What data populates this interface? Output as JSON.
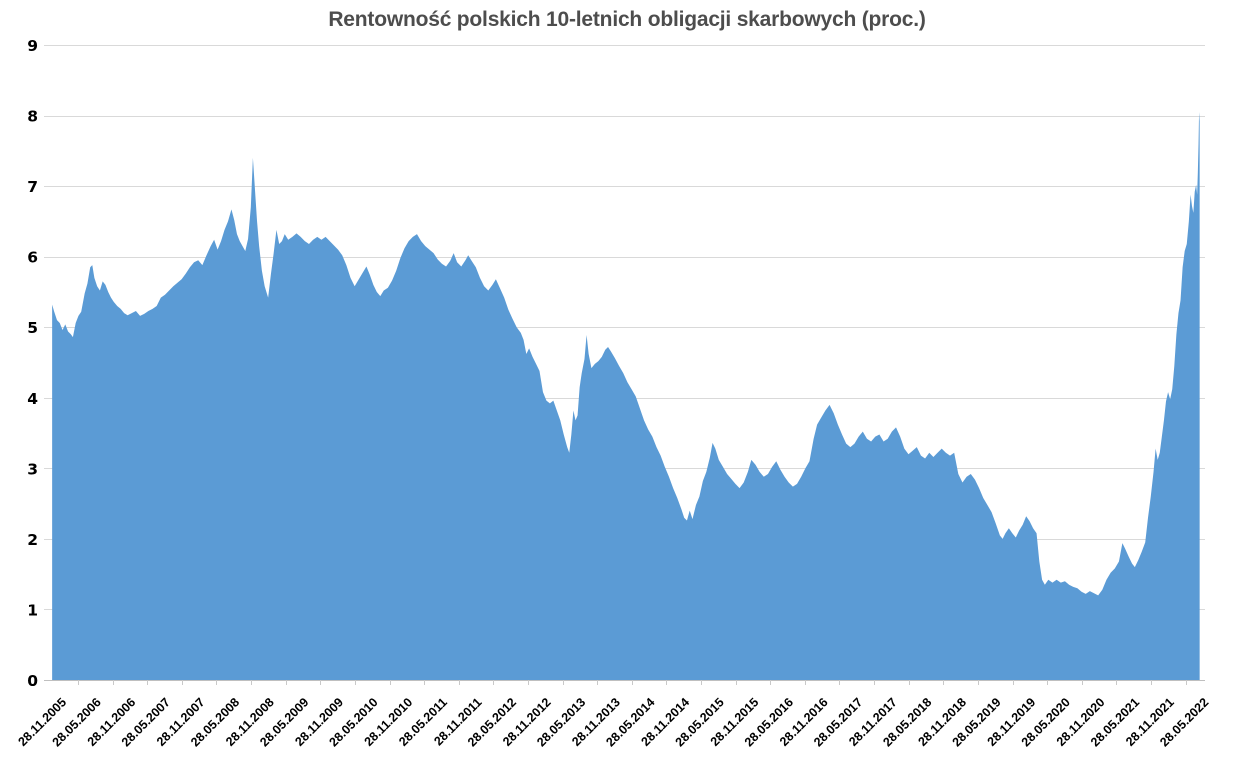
{
  "colors": {
    "area": "#5B9BD5",
    "gridline": "#D9D9D9",
    "axis_line": "#BFBFBF",
    "tick_mark": "#C9C9C9",
    "title_text": "#4D4D4D",
    "tick_text": "#000000",
    "background": "#FFFFFF"
  },
  "chart_data": {
    "type": "area",
    "title": "Rentowność polskich 10-letnich obligacji skarbowych (proc.)",
    "xlabel": "",
    "ylabel": "",
    "ylim": [
      0,
      9
    ],
    "grid": true,
    "legend": false,
    "x_unit": "decimal_year",
    "y_tick_labels": [
      "0",
      "1",
      "2",
      "3",
      "4",
      "5",
      "6",
      "7",
      "8",
      "9"
    ],
    "x_tick_labels": [
      "28.11.2005",
      "28.05.2006",
      "28.11.2006",
      "28.05.2007",
      "28.11.2007",
      "28.05.2008",
      "28.11.2008",
      "28.05.2009",
      "28.11.2009",
      "28.05.2010",
      "28.11.2010",
      "28.05.2011",
      "28.11.2011",
      "28.05.2012",
      "28.11.2012",
      "28.05.2013",
      "28.11.2013",
      "28.05.2014",
      "28.11.2014",
      "28.05.2015",
      "28.11.2015",
      "28.05.2016",
      "28.11.2016",
      "28.05.2017",
      "28.11.2017",
      "28.05.2018",
      "28.11.2018",
      "28.05.2019",
      "28.11.2019",
      "28.05.2020",
      "28.11.2020",
      "28.05.2021",
      "28.11.2021",
      "28.05.2022"
    ],
    "points": [
      [
        2005.91,
        5.32
      ],
      [
        2005.94,
        5.22
      ],
      [
        2005.98,
        5.1
      ],
      [
        2006.02,
        5.06
      ],
      [
        2006.06,
        4.96
      ],
      [
        2006.1,
        5.04
      ],
      [
        2006.14,
        4.94
      ],
      [
        2006.18,
        4.9
      ],
      [
        2006.21,
        4.86
      ],
      [
        2006.25,
        5.06
      ],
      [
        2006.29,
        5.16
      ],
      [
        2006.33,
        5.22
      ],
      [
        2006.38,
        5.48
      ],
      [
        2006.42,
        5.62
      ],
      [
        2006.46,
        5.85
      ],
      [
        2006.49,
        5.88
      ],
      [
        2006.52,
        5.7
      ],
      [
        2006.56,
        5.58
      ],
      [
        2006.6,
        5.52
      ],
      [
        2006.64,
        5.65
      ],
      [
        2006.68,
        5.6
      ],
      [
        2006.72,
        5.5
      ],
      [
        2006.76,
        5.42
      ],
      [
        2006.8,
        5.36
      ],
      [
        2006.85,
        5.3
      ],
      [
        2006.9,
        5.26
      ],
      [
        2006.95,
        5.2
      ],
      [
        2007.0,
        5.17
      ],
      [
        2007.06,
        5.2
      ],
      [
        2007.12,
        5.23
      ],
      [
        2007.18,
        5.16
      ],
      [
        2007.24,
        5.19
      ],
      [
        2007.3,
        5.23
      ],
      [
        2007.36,
        5.26
      ],
      [
        2007.42,
        5.3
      ],
      [
        2007.48,
        5.42
      ],
      [
        2007.54,
        5.46
      ],
      [
        2007.6,
        5.52
      ],
      [
        2007.66,
        5.58
      ],
      [
        2007.72,
        5.63
      ],
      [
        2007.78,
        5.68
      ],
      [
        2007.84,
        5.76
      ],
      [
        2007.9,
        5.85
      ],
      [
        2007.96,
        5.92
      ],
      [
        2008.02,
        5.95
      ],
      [
        2008.08,
        5.88
      ],
      [
        2008.14,
        6.02
      ],
      [
        2008.2,
        6.15
      ],
      [
        2008.25,
        6.24
      ],
      [
        2008.3,
        6.1
      ],
      [
        2008.35,
        6.22
      ],
      [
        2008.4,
        6.38
      ],
      [
        2008.45,
        6.5
      ],
      [
        2008.5,
        6.67
      ],
      [
        2008.54,
        6.52
      ],
      [
        2008.58,
        6.32
      ],
      [
        2008.62,
        6.22
      ],
      [
        2008.66,
        6.15
      ],
      [
        2008.7,
        6.08
      ],
      [
        2008.74,
        6.25
      ],
      [
        2008.78,
        6.7
      ],
      [
        2008.81,
        7.4
      ],
      [
        2008.84,
        6.95
      ],
      [
        2008.87,
        6.5
      ],
      [
        2008.9,
        6.15
      ],
      [
        2008.94,
        5.8
      ],
      [
        2008.98,
        5.58
      ],
      [
        2009.03,
        5.42
      ],
      [
        2009.07,
        5.75
      ],
      [
        2009.11,
        6.05
      ],
      [
        2009.15,
        6.38
      ],
      [
        2009.19,
        6.18
      ],
      [
        2009.23,
        6.22
      ],
      [
        2009.27,
        6.32
      ],
      [
        2009.32,
        6.24
      ],
      [
        2009.38,
        6.28
      ],
      [
        2009.44,
        6.33
      ],
      [
        2009.5,
        6.28
      ],
      [
        2009.56,
        6.22
      ],
      [
        2009.62,
        6.18
      ],
      [
        2009.68,
        6.24
      ],
      [
        2009.74,
        6.28
      ],
      [
        2009.8,
        6.24
      ],
      [
        2009.86,
        6.28
      ],
      [
        2009.92,
        6.22
      ],
      [
        2009.98,
        6.16
      ],
      [
        2010.04,
        6.1
      ],
      [
        2010.1,
        6.02
      ],
      [
        2010.16,
        5.88
      ],
      [
        2010.22,
        5.7
      ],
      [
        2010.28,
        5.58
      ],
      [
        2010.34,
        5.68
      ],
      [
        2010.4,
        5.78
      ],
      [
        2010.45,
        5.86
      ],
      [
        2010.5,
        5.74
      ],
      [
        2010.55,
        5.6
      ],
      [
        2010.6,
        5.5
      ],
      [
        2010.65,
        5.44
      ],
      [
        2010.7,
        5.52
      ],
      [
        2010.76,
        5.56
      ],
      [
        2010.82,
        5.66
      ],
      [
        2010.88,
        5.8
      ],
      [
        2010.94,
        5.98
      ],
      [
        2011.0,
        6.12
      ],
      [
        2011.06,
        6.22
      ],
      [
        2011.12,
        6.28
      ],
      [
        2011.18,
        6.32
      ],
      [
        2011.24,
        6.22
      ],
      [
        2011.3,
        6.15
      ],
      [
        2011.36,
        6.1
      ],
      [
        2011.42,
        6.05
      ],
      [
        2011.48,
        5.96
      ],
      [
        2011.54,
        5.9
      ],
      [
        2011.6,
        5.86
      ],
      [
        2011.66,
        5.94
      ],
      [
        2011.71,
        6.05
      ],
      [
        2011.76,
        5.92
      ],
      [
        2011.82,
        5.86
      ],
      [
        2011.88,
        5.95
      ],
      [
        2011.92,
        6.02
      ],
      [
        2011.97,
        5.94
      ],
      [
        2012.03,
        5.85
      ],
      [
        2012.09,
        5.7
      ],
      [
        2012.15,
        5.58
      ],
      [
        2012.21,
        5.52
      ],
      [
        2012.27,
        5.6
      ],
      [
        2012.32,
        5.68
      ],
      [
        2012.38,
        5.55
      ],
      [
        2012.44,
        5.42
      ],
      [
        2012.5,
        5.25
      ],
      [
        2012.56,
        5.12
      ],
      [
        2012.62,
        5.0
      ],
      [
        2012.68,
        4.92
      ],
      [
        2012.72,
        4.82
      ],
      [
        2012.76,
        4.62
      ],
      [
        2012.8,
        4.7
      ],
      [
        2012.85,
        4.58
      ],
      [
        2012.9,
        4.48
      ],
      [
        2012.95,
        4.38
      ],
      [
        2013.0,
        4.08
      ],
      [
        2013.05,
        3.96
      ],
      [
        2013.1,
        3.92
      ],
      [
        2013.15,
        3.96
      ],
      [
        2013.2,
        3.82
      ],
      [
        2013.25,
        3.68
      ],
      [
        2013.3,
        3.48
      ],
      [
        2013.35,
        3.3
      ],
      [
        2013.38,
        3.22
      ],
      [
        2013.41,
        3.48
      ],
      [
        2013.44,
        3.82
      ],
      [
        2013.47,
        3.68
      ],
      [
        2013.5,
        3.75
      ],
      [
        2013.53,
        4.15
      ],
      [
        2013.56,
        4.35
      ],
      [
        2013.6,
        4.55
      ],
      [
        2013.63,
        4.89
      ],
      [
        2013.66,
        4.62
      ],
      [
        2013.7,
        4.42
      ],
      [
        2013.75,
        4.48
      ],
      [
        2013.8,
        4.52
      ],
      [
        2013.85,
        4.58
      ],
      [
        2013.9,
        4.68
      ],
      [
        2013.94,
        4.72
      ],
      [
        2013.98,
        4.66
      ],
      [
        2014.04,
        4.56
      ],
      [
        2014.1,
        4.45
      ],
      [
        2014.16,
        4.35
      ],
      [
        2014.22,
        4.22
      ],
      [
        2014.28,
        4.12
      ],
      [
        2014.34,
        4.02
      ],
      [
        2014.4,
        3.85
      ],
      [
        2014.46,
        3.68
      ],
      [
        2014.52,
        3.55
      ],
      [
        2014.58,
        3.45
      ],
      [
        2014.64,
        3.3
      ],
      [
        2014.7,
        3.18
      ],
      [
        2014.76,
        3.02
      ],
      [
        2014.82,
        2.88
      ],
      [
        2014.88,
        2.72
      ],
      [
        2014.94,
        2.58
      ],
      [
        2015.0,
        2.42
      ],
      [
        2015.04,
        2.3
      ],
      [
        2015.08,
        2.26
      ],
      [
        2015.12,
        2.4
      ],
      [
        2015.16,
        2.28
      ],
      [
        2015.21,
        2.48
      ],
      [
        2015.26,
        2.6
      ],
      [
        2015.31,
        2.82
      ],
      [
        2015.36,
        2.95
      ],
      [
        2015.41,
        3.15
      ],
      [
        2015.45,
        3.36
      ],
      [
        2015.49,
        3.28
      ],
      [
        2015.54,
        3.12
      ],
      [
        2015.6,
        3.02
      ],
      [
        2015.66,
        2.92
      ],
      [
        2015.72,
        2.85
      ],
      [
        2015.78,
        2.78
      ],
      [
        2015.84,
        2.72
      ],
      [
        2015.9,
        2.8
      ],
      [
        2015.96,
        2.95
      ],
      [
        2016.01,
        3.12
      ],
      [
        2016.07,
        3.05
      ],
      [
        2016.13,
        2.95
      ],
      [
        2016.19,
        2.88
      ],
      [
        2016.25,
        2.92
      ],
      [
        2016.31,
        3.02
      ],
      [
        2016.37,
        3.1
      ],
      [
        2016.43,
        2.98
      ],
      [
        2016.49,
        2.88
      ],
      [
        2016.55,
        2.8
      ],
      [
        2016.61,
        2.74
      ],
      [
        2016.67,
        2.78
      ],
      [
        2016.73,
        2.88
      ],
      [
        2016.79,
        3.0
      ],
      [
        2016.85,
        3.1
      ],
      [
        2016.91,
        3.42
      ],
      [
        2016.96,
        3.62
      ],
      [
        2017.02,
        3.72
      ],
      [
        2017.08,
        3.82
      ],
      [
        2017.14,
        3.9
      ],
      [
        2017.2,
        3.78
      ],
      [
        2017.26,
        3.62
      ],
      [
        2017.32,
        3.48
      ],
      [
        2017.38,
        3.35
      ],
      [
        2017.44,
        3.3
      ],
      [
        2017.5,
        3.35
      ],
      [
        2017.56,
        3.45
      ],
      [
        2017.62,
        3.52
      ],
      [
        2017.68,
        3.42
      ],
      [
        2017.74,
        3.38
      ],
      [
        2017.8,
        3.45
      ],
      [
        2017.86,
        3.48
      ],
      [
        2017.92,
        3.38
      ],
      [
        2017.98,
        3.42
      ],
      [
        2018.04,
        3.52
      ],
      [
        2018.1,
        3.58
      ],
      [
        2018.16,
        3.45
      ],
      [
        2018.22,
        3.28
      ],
      [
        2018.28,
        3.2
      ],
      [
        2018.34,
        3.25
      ],
      [
        2018.4,
        3.3
      ],
      [
        2018.46,
        3.18
      ],
      [
        2018.52,
        3.14
      ],
      [
        2018.58,
        3.22
      ],
      [
        2018.64,
        3.16
      ],
      [
        2018.7,
        3.22
      ],
      [
        2018.76,
        3.28
      ],
      [
        2018.82,
        3.22
      ],
      [
        2018.88,
        3.18
      ],
      [
        2018.94,
        3.22
      ],
      [
        2019.0,
        2.92
      ],
      [
        2019.06,
        2.8
      ],
      [
        2019.12,
        2.88
      ],
      [
        2019.18,
        2.92
      ],
      [
        2019.24,
        2.84
      ],
      [
        2019.3,
        2.72
      ],
      [
        2019.36,
        2.58
      ],
      [
        2019.42,
        2.48
      ],
      [
        2019.48,
        2.38
      ],
      [
        2019.54,
        2.22
      ],
      [
        2019.6,
        2.05
      ],
      [
        2019.64,
        2.0
      ],
      [
        2019.68,
        2.08
      ],
      [
        2019.73,
        2.15
      ],
      [
        2019.78,
        2.08
      ],
      [
        2019.83,
        2.02
      ],
      [
        2019.88,
        2.12
      ],
      [
        2019.93,
        2.2
      ],
      [
        2019.98,
        2.32
      ],
      [
        2020.03,
        2.25
      ],
      [
        2020.08,
        2.15
      ],
      [
        2020.13,
        2.08
      ],
      [
        2020.17,
        1.68
      ],
      [
        2020.21,
        1.42
      ],
      [
        2020.25,
        1.35
      ],
      [
        2020.3,
        1.42
      ],
      [
        2020.36,
        1.38
      ],
      [
        2020.42,
        1.42
      ],
      [
        2020.48,
        1.38
      ],
      [
        2020.54,
        1.4
      ],
      [
        2020.6,
        1.35
      ],
      [
        2020.66,
        1.32
      ],
      [
        2020.72,
        1.3
      ],
      [
        2020.78,
        1.25
      ],
      [
        2020.84,
        1.22
      ],
      [
        2020.9,
        1.26
      ],
      [
        2020.96,
        1.23
      ],
      [
        2021.02,
        1.2
      ],
      [
        2021.08,
        1.28
      ],
      [
        2021.14,
        1.42
      ],
      [
        2021.2,
        1.52
      ],
      [
        2021.26,
        1.58
      ],
      [
        2021.32,
        1.68
      ],
      [
        2021.37,
        1.94
      ],
      [
        2021.41,
        1.86
      ],
      [
        2021.46,
        1.75
      ],
      [
        2021.51,
        1.65
      ],
      [
        2021.55,
        1.6
      ],
      [
        2021.6,
        1.7
      ],
      [
        2021.65,
        1.82
      ],
      [
        2021.7,
        1.95
      ],
      [
        2021.74,
        2.3
      ],
      [
        2021.78,
        2.6
      ],
      [
        2021.82,
        2.95
      ],
      [
        2021.85,
        3.28
      ],
      [
        2021.88,
        3.12
      ],
      [
        2021.91,
        3.22
      ],
      [
        2021.94,
        3.45
      ],
      [
        2021.97,
        3.68
      ],
      [
        2022.0,
        3.95
      ],
      [
        2022.03,
        4.08
      ],
      [
        2022.06,
        3.98
      ],
      [
        2022.09,
        4.12
      ],
      [
        2022.12,
        4.45
      ],
      [
        2022.15,
        4.9
      ],
      [
        2022.18,
        5.2
      ],
      [
        2022.21,
        5.38
      ],
      [
        2022.24,
        5.85
      ],
      [
        2022.27,
        6.08
      ],
      [
        2022.3,
        6.18
      ],
      [
        2022.33,
        6.5
      ],
      [
        2022.355,
        6.88
      ],
      [
        2022.375,
        6.72
      ],
      [
        2022.395,
        6.62
      ],
      [
        2022.415,
        6.92
      ],
      [
        2022.435,
        7.02
      ],
      [
        2022.45,
        6.88
      ],
      [
        2022.46,
        7.2
      ],
      [
        2022.47,
        7.6
      ],
      [
        2022.478,
        8.05
      ],
      [
        2022.486,
        7.92
      ]
    ]
  }
}
